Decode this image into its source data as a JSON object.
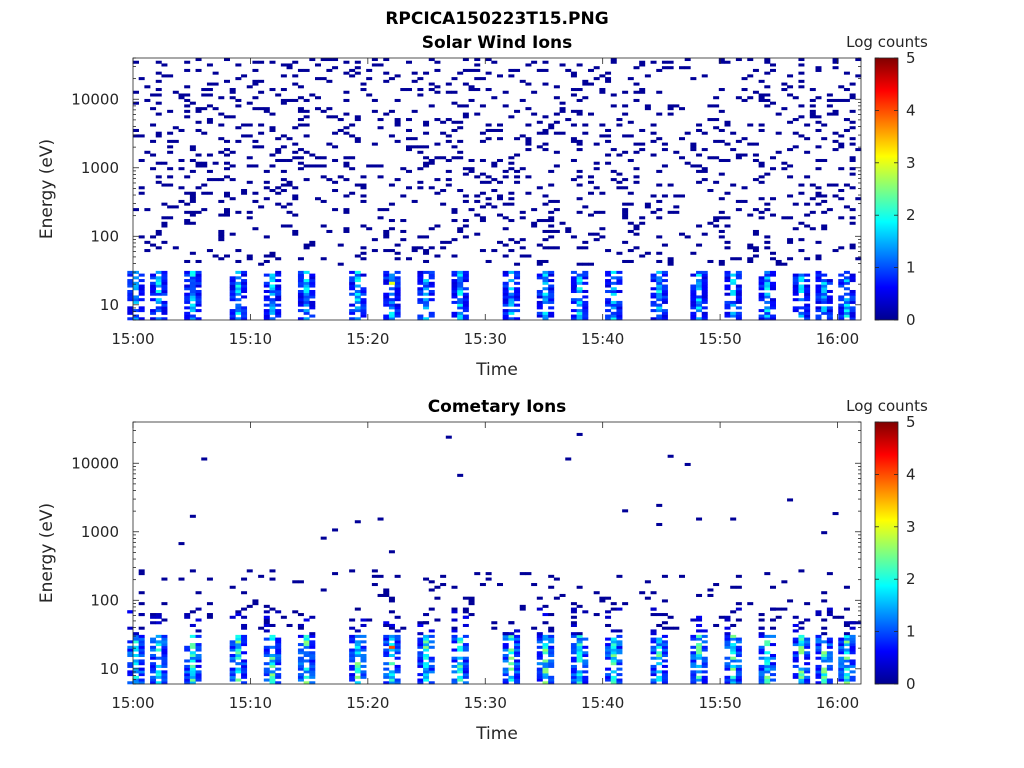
{
  "figure_title": "RPCICA150223T15.PNG",
  "colormap": {
    "name": "jet",
    "stops": [
      "#00008f",
      "#0000ff",
      "#00ffff",
      "#ffff00",
      "#ff0000",
      "#800000"
    ]
  },
  "chart_data": [
    {
      "type": "heatmap",
      "title": "Solar Wind Ions",
      "xlabel": "Time",
      "ylabel": "Energy (eV)",
      "x_ticks": [
        "15:00",
        "15:10",
        "15:20",
        "15:30",
        "15:40",
        "15:50",
        "16:00"
      ],
      "x_range": [
        "15:00",
        "16:02"
      ],
      "y_scale": "log",
      "y_ticks": [
        10,
        100,
        1000,
        10000
      ],
      "y_range": [
        6,
        40000
      ],
      "colorbar": {
        "label": "Log counts",
        "ticks": [
          0,
          1,
          2,
          3,
          4,
          5
        ],
        "range": [
          0,
          5
        ]
      },
      "pattern": {
        "background_counts_level": 0,
        "background_energy_range": [
          40,
          40000
        ],
        "low_energy_bursts_range": [
          6,
          30
        ],
        "burst_times": [
          "15:00",
          "15:02",
          "15:05",
          "15:09",
          "15:12",
          "15:15",
          "15:19",
          "15:22",
          "15:25",
          "15:28",
          "15:32",
          "15:35",
          "15:38",
          "15:41",
          "15:45",
          "15:48",
          "15:51",
          "15:54",
          "15:57",
          "15:59",
          "16:01"
        ],
        "burst_peak_log_counts": 2,
        "max_log_counts_at": {
          "time": "15:22",
          "energy": 20,
          "value": 3
        }
      }
    },
    {
      "type": "heatmap",
      "title": "Cometary Ions",
      "xlabel": "Time",
      "ylabel": "Energy (eV)",
      "x_ticks": [
        "15:00",
        "15:10",
        "15:20",
        "15:30",
        "15:40",
        "15:50",
        "16:00"
      ],
      "x_range": [
        "15:00",
        "16:02"
      ],
      "y_scale": "log",
      "y_ticks": [
        10,
        100,
        1000,
        10000
      ],
      "y_range": [
        6,
        40000
      ],
      "colorbar": {
        "label": "Log counts",
        "ticks": [
          0,
          1,
          2,
          3,
          4,
          5
        ],
        "range": [
          0,
          5
        ]
      },
      "pattern": {
        "sparse_points": [
          {
            "time": "15:04",
            "energy": 650
          },
          {
            "time": "15:05",
            "energy": 1700
          },
          {
            "time": "15:06",
            "energy": 12000
          },
          {
            "time": "15:16",
            "energy": 800
          },
          {
            "time": "15:17",
            "energy": 1100
          },
          {
            "time": "15:19",
            "energy": 1400
          },
          {
            "time": "15:21",
            "energy": 1600
          },
          {
            "time": "15:22",
            "energy": 500
          },
          {
            "time": "15:27",
            "energy": 24000
          },
          {
            "time": "15:28",
            "energy": 6500
          },
          {
            "time": "15:37",
            "energy": 12000
          },
          {
            "time": "15:38",
            "energy": 26000
          },
          {
            "time": "15:42",
            "energy": 2000
          },
          {
            "time": "15:45",
            "energy": 1300
          },
          {
            "time": "15:45",
            "energy": 2400
          },
          {
            "time": "15:46",
            "energy": 13000
          },
          {
            "time": "15:47",
            "energy": 10000
          },
          {
            "time": "15:48",
            "energy": 1600
          },
          {
            "time": "15:51",
            "energy": 1600
          },
          {
            "time": "15:56",
            "energy": 3000
          },
          {
            "time": "15:59",
            "energy": 950
          },
          {
            "time": "16:00",
            "energy": 1800
          }
        ],
        "diffuse_energy_range": [
          40,
          300
        ],
        "burst_energy_range": [
          6,
          30
        ],
        "burst_times": [
          "15:00",
          "15:02",
          "15:05",
          "15:09",
          "15:12",
          "15:15",
          "15:19",
          "15:22",
          "15:25",
          "15:28",
          "15:32",
          "15:35",
          "15:38",
          "15:41",
          "15:45",
          "15:48",
          "15:51",
          "15:54",
          "15:57",
          "15:59",
          "16:01"
        ],
        "burst_peak_log_counts": 2.6,
        "max_log_counts_at": {
          "time": "15:22",
          "energy": 20,
          "value": 4
        }
      }
    }
  ]
}
